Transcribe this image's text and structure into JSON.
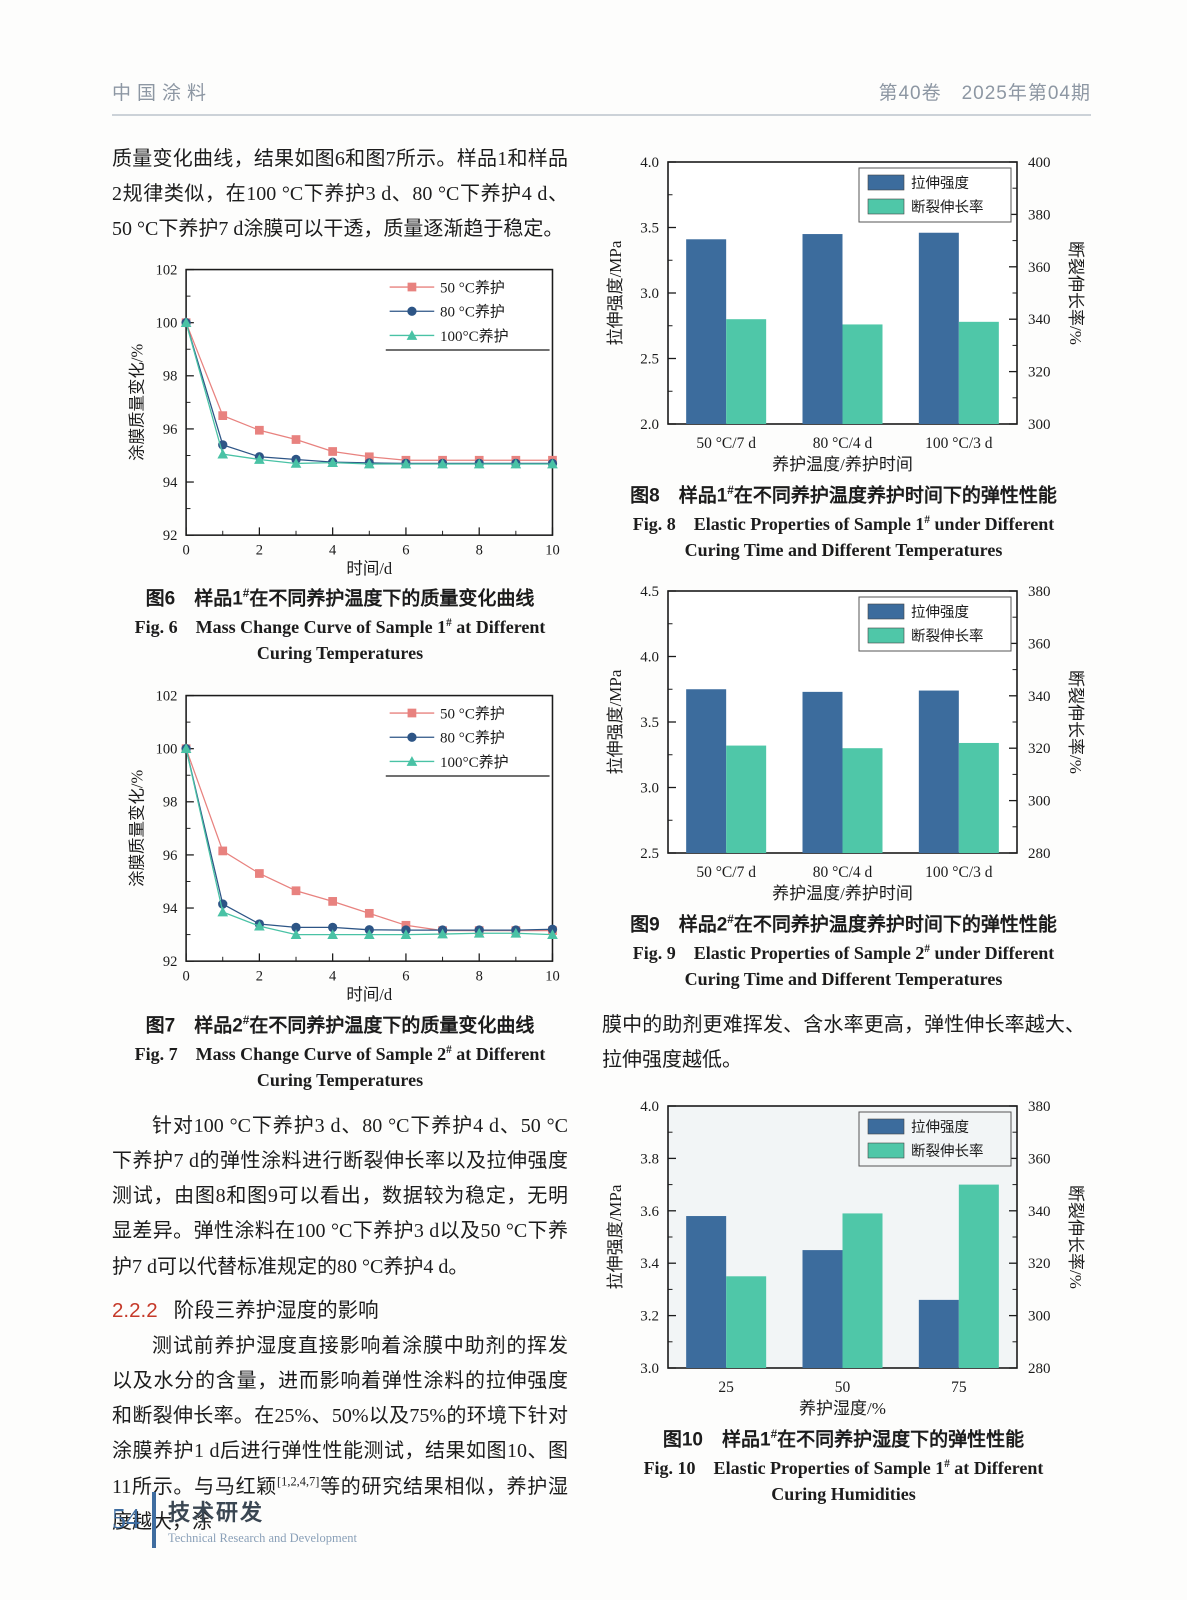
{
  "page": {
    "header": {
      "journal": "中国涂料",
      "issue": "第40卷　2025年第04期"
    },
    "footer": {
      "page_number": "54",
      "section_zh": "技术研发",
      "section_en": "Technical Research and Development"
    },
    "colors": {
      "accent_red": "#c53929",
      "footer_blue": "#3f6da0",
      "bar_blue": "#3c6c9d",
      "bar_teal": "#4fc7a8"
    }
  },
  "left_column": {
    "para1": "质量变化曲线，结果如图6和图7所示。样品1和样品2规律类似，在100 °C下养护3 d、80 °C下养护4 d、50 °C下养护7 d涂膜可以干透，质量逐渐趋于稳定。",
    "para2": "针对100 °C下养护3 d、80 °C下养护4 d、50 °C下养护7 d的弹性涂料进行断裂伸长率以及拉伸强度测试，由图8和图9可以看出，数据较为稳定，无明显差异。弹性涂料在100 °C下养护3 d以及50 °C下养护7 d可以代替标准规定的80 °C养护4 d。",
    "heading_num": "2.2.2",
    "heading_text": "阶段三养护湿度的影响",
    "para3_pre": "测试前养护湿度直接影响着涂膜中助剂的挥发以及水分的含量，进而影响着弹性涂料的拉伸强度和断裂伸长率。在25%、50%以及75%的环境下针对涂膜养护1 d后进行弹性性能测试，结果如图10、图11所示。与马红颖",
    "para3_sup": "[1,2,4,7]",
    "para3_post": "等的研究结果相似，养护湿度越大，涂"
  },
  "right_column": {
    "para_cont": "膜中的助剂更难挥发、含水率更高，弹性伸长率越大、拉伸强度越低。"
  },
  "figures": {
    "fig6": {
      "cap_zh_pre": "图6　样品1",
      "cap_sup": "#",
      "cap_zh_post": "在不同养护温度下的质量变化曲线",
      "cap_en1_pre": "Fig. 6　Mass Change Curve of Sample 1",
      "cap_en1_post": " at Different",
      "cap_en2": "Curing Temperatures"
    },
    "fig7": {
      "cap_zh_pre": "图7　样品2",
      "cap_sup": "#",
      "cap_zh_post": "在不同养护温度下的质量变化曲线",
      "cap_en1_pre": "Fig. 7　Mass Change Curve of Sample 2",
      "cap_en1_post": " at Different",
      "cap_en2": "Curing Temperatures"
    },
    "fig8": {
      "cap_zh_pre": "图8　样品1",
      "cap_sup": "#",
      "cap_zh_post": "在不同养护温度养护时间下的弹性性能",
      "cap_en1_pre": "Fig. 8　Elastic Properties of Sample 1",
      "cap_en1_post": " under Different",
      "cap_en2": "Curing Time and Different Temperatures"
    },
    "fig9": {
      "cap_zh_pre": "图9　样品2",
      "cap_sup": "#",
      "cap_zh_post": "在不同养护温度养护时间下的弹性性能",
      "cap_en1_pre": "Fig. 9　Elastic Properties of Sample 2",
      "cap_en1_post": " under Different",
      "cap_en2": "Curing Time and Different Temperatures"
    },
    "fig10": {
      "cap_zh_pre": "图10　样品1",
      "cap_sup": "#",
      "cap_zh_post": "在不同养护湿度下的弹性性能",
      "cap_en1_pre": "Fig. 10　Elastic Properties of Sample 1",
      "cap_en1_post": " at Different",
      "cap_en2": "Curing Humidities"
    }
  },
  "chart_data": [
    {
      "id": "fig6",
      "type": "line",
      "x": [
        0,
        1,
        2,
        3,
        4,
        5,
        6,
        7,
        8,
        9,
        10
      ],
      "series": [
        {
          "name": "50 °C养护",
          "marker": "square",
          "color": "#e8827f",
          "values": [
            100,
            96.5,
            95.95,
            95.6,
            95.15,
            94.95,
            94.82,
            94.82,
            94.82,
            94.82,
            94.82
          ]
        },
        {
          "name": "80 °C养护",
          "marker": "circle",
          "color": "#2d5586",
          "values": [
            100,
            95.4,
            94.95,
            94.85,
            94.75,
            94.72,
            94.7,
            94.7,
            94.7,
            94.7,
            94.7
          ]
        },
        {
          "name": "100°C养护",
          "marker": "triangle",
          "color": "#49c2a5",
          "values": [
            100,
            95.05,
            94.85,
            94.7,
            94.73,
            94.68,
            94.68,
            94.68,
            94.68,
            94.68,
            94.68
          ]
        }
      ],
      "xlabel": "时间/d",
      "ylabel": "涂膜质量变化/%",
      "xlim": [
        0,
        10
      ],
      "xticks": [
        0,
        2,
        4,
        6,
        8,
        10
      ],
      "ylim": [
        92,
        102
      ],
      "yticks": [
        92,
        94,
        96,
        98,
        100,
        102
      ],
      "legend_position": "top-right",
      "bg": "#ffffff"
    },
    {
      "id": "fig7",
      "type": "line",
      "x": [
        0,
        1,
        2,
        3,
        4,
        5,
        6,
        7,
        8,
        9,
        10
      ],
      "series": [
        {
          "name": "50 °C养护",
          "marker": "square",
          "color": "#e8827f",
          "values": [
            100,
            96.15,
            95.3,
            94.65,
            94.25,
            93.8,
            93.35,
            93.15,
            93.15,
            93.15,
            93.15
          ]
        },
        {
          "name": "80 °C养护",
          "marker": "circle",
          "color": "#2d5586",
          "values": [
            100,
            94.15,
            93.4,
            93.27,
            93.27,
            93.18,
            93.17,
            93.17,
            93.17,
            93.17,
            93.2
          ]
        },
        {
          "name": "100°C养护",
          "marker": "triangle",
          "color": "#49c2a5",
          "values": [
            100,
            93.85,
            93.32,
            93.0,
            93.0,
            93.0,
            93.0,
            93.02,
            93.05,
            93.05,
            93.0
          ]
        }
      ],
      "xlabel": "时间/d",
      "ylabel": "涂膜质量变化/%",
      "xlim": [
        0,
        10
      ],
      "xticks": [
        0,
        2,
        4,
        6,
        8,
        10
      ],
      "ylim": [
        92,
        102
      ],
      "yticks": [
        92,
        94,
        96,
        98,
        100,
        102
      ],
      "legend_position": "top-right",
      "bg": "#ffffff"
    },
    {
      "id": "fig8",
      "type": "bar",
      "categories": [
        "50 °C/7 d",
        "80 °C/4 d",
        "100 °C/3 d"
      ],
      "series": [
        {
          "name": "拉伸强度",
          "axis": "left",
          "color": "#3c6c9d",
          "values": [
            3.41,
            3.45,
            3.46
          ]
        },
        {
          "name": "断裂伸长率",
          "axis": "right",
          "color": "#4fc7a8",
          "values": [
            340,
            338,
            339
          ]
        }
      ],
      "xlabel": "养护温度/养护时间",
      "ylabel_left": "拉伸强度/MPa",
      "ylabel_right": "断裂伸长率/%",
      "ylim_left": [
        2.0,
        4.0
      ],
      "yticks_left": [
        "2.0",
        "2.5",
        "3.0",
        "3.5",
        "4.0"
      ],
      "ylim_right": [
        300,
        400
      ],
      "yticks_right": [
        "300",
        "320",
        "340",
        "360",
        "380",
        "400"
      ],
      "legend_position": "top-right",
      "bg": "#ffffff"
    },
    {
      "id": "fig9",
      "type": "bar",
      "categories": [
        "50 °C/7 d",
        "80 °C/4 d",
        "100 °C/3 d"
      ],
      "series": [
        {
          "name": "拉伸强度",
          "axis": "left",
          "color": "#3c6c9d",
          "values": [
            3.75,
            3.73,
            3.74
          ]
        },
        {
          "name": "断裂伸长率",
          "axis": "right",
          "color": "#4fc7a8",
          "values": [
            321,
            320,
            322
          ]
        }
      ],
      "xlabel": "养护温度/养护时间",
      "ylabel_left": "拉伸强度/MPa",
      "ylabel_right": "断裂伸长率/%",
      "ylim_left": [
        2.5,
        4.5
      ],
      "yticks_left": [
        "2.5",
        "3.0",
        "3.5",
        "4.0",
        "4.5"
      ],
      "ylim_right": [
        280,
        380
      ],
      "yticks_right": [
        "280",
        "300",
        "320",
        "340",
        "360",
        "380"
      ],
      "legend_position": "top-right",
      "bg": "#ffffff"
    },
    {
      "id": "fig10",
      "type": "bar",
      "categories": [
        "25",
        "50",
        "75"
      ],
      "series": [
        {
          "name": "拉伸强度",
          "axis": "left",
          "color": "#3c6c9d",
          "values": [
            3.58,
            3.45,
            3.26
          ]
        },
        {
          "name": "断裂伸长率",
          "axis": "right",
          "color": "#4fc7a8",
          "values": [
            315,
            339,
            350
          ]
        }
      ],
      "xlabel": "养护湿度/%",
      "ylabel_left": "拉伸强度/MPa",
      "ylabel_right": "断裂伸长率/%",
      "ylim_left": [
        3.0,
        4.0
      ],
      "yticks_left": [
        "3.0",
        "3.2",
        "3.4",
        "3.6",
        "3.8",
        "4.0"
      ],
      "ylim_right": [
        280,
        380
      ],
      "yticks_right": [
        "280",
        "300",
        "320",
        "340",
        "360",
        "380"
      ],
      "legend_position": "top-right",
      "bg": "#f2f5f6"
    }
  ]
}
